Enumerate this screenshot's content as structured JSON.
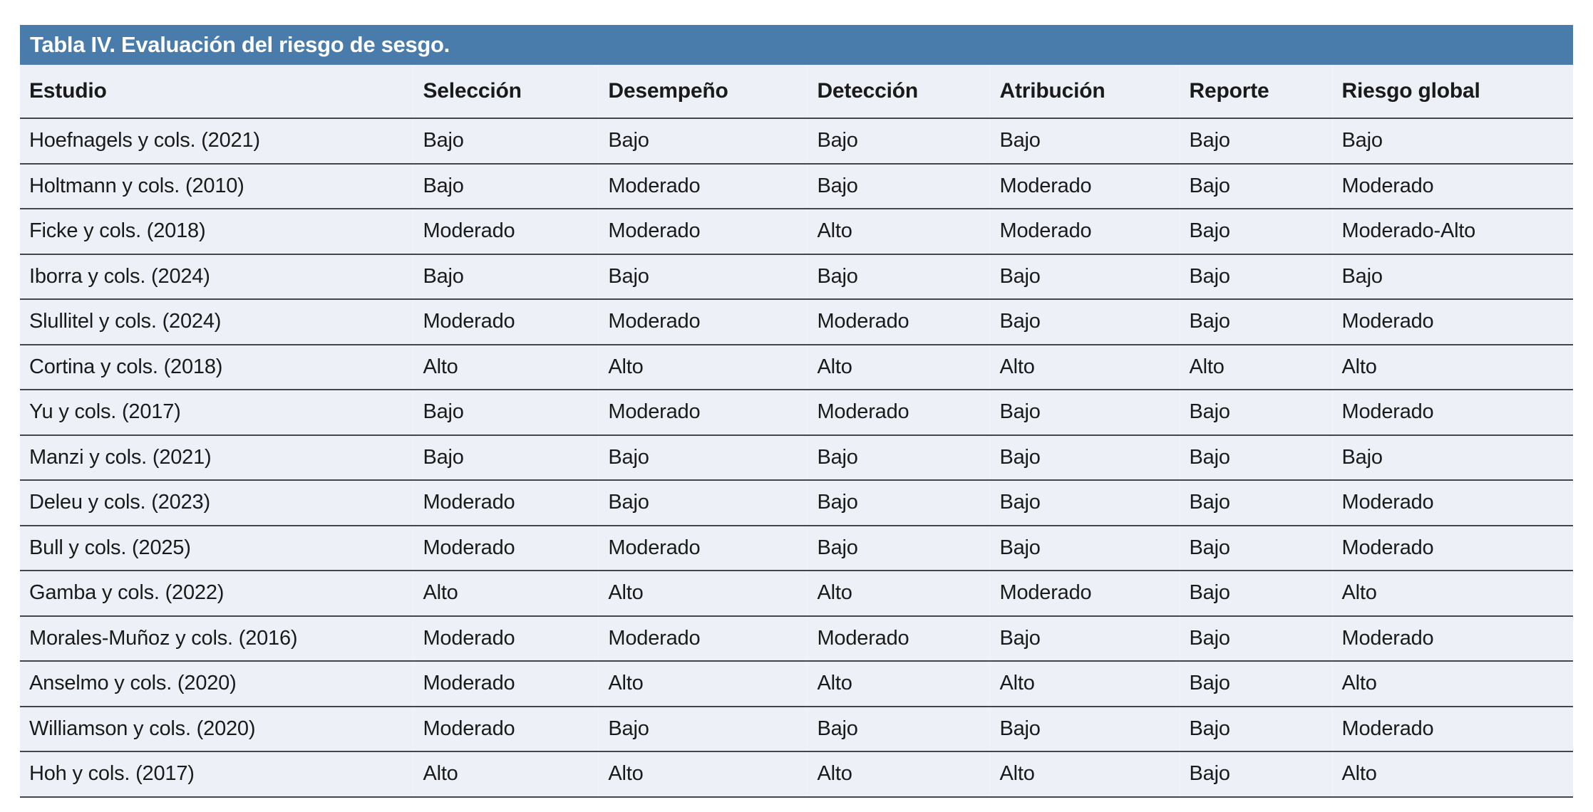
{
  "table": {
    "title": "Tabla IV. Evaluación del riesgo de sesgo.",
    "columns": [
      "Estudio",
      "Selección",
      "Desempeño",
      "Detección",
      "Atribución",
      "Reporte",
      "Riesgo global"
    ],
    "rows": [
      [
        "Hoefnagels y cols. (2021)",
        "Bajo",
        "Bajo",
        "Bajo",
        "Bajo",
        "Bajo",
        "Bajo"
      ],
      [
        "Holtmann y cols. (2010)",
        "Bajo",
        "Moderado",
        "Bajo",
        "Moderado",
        "Bajo",
        "Moderado"
      ],
      [
        "Ficke y cols. (2018)",
        "Moderado",
        "Moderado",
        "Alto",
        "Moderado",
        "Bajo",
        "Moderado-Alto"
      ],
      [
        "Iborra y cols. (2024)",
        "Bajo",
        "Bajo",
        "Bajo",
        "Bajo",
        "Bajo",
        "Bajo"
      ],
      [
        "Slullitel y cols. (2024)",
        "Moderado",
        "Moderado",
        "Moderado",
        "Bajo",
        "Bajo",
        "Moderado"
      ],
      [
        "Cortina y cols. (2018)",
        "Alto",
        "Alto",
        "Alto",
        "Alto",
        "Alto",
        "Alto"
      ],
      [
        "Yu y cols. (2017)",
        "Bajo",
        "Moderado",
        "Moderado",
        "Bajo",
        "Bajo",
        "Moderado"
      ],
      [
        "Manzi y cols. (2021)",
        "Bajo",
        "Bajo",
        "Bajo",
        "Bajo",
        "Bajo",
        "Bajo"
      ],
      [
        "Deleu y cols. (2023)",
        "Moderado",
        "Bajo",
        "Bajo",
        "Bajo",
        "Bajo",
        "Moderado"
      ],
      [
        "Bull y cols. (2025)",
        "Moderado",
        "Moderado",
        "Bajo",
        "Bajo",
        "Bajo",
        "Moderado"
      ],
      [
        "Gamba y cols. (2022)",
        "Alto",
        "Alto",
        "Alto",
        "Moderado",
        "Bajo",
        "Alto"
      ],
      [
        "Morales-Muñoz y cols. (2016)",
        "Moderado",
        "Moderado",
        "Moderado",
        "Bajo",
        "Bajo",
        "Moderado"
      ],
      [
        "Anselmo y cols. (2020)",
        "Moderado",
        "Alto",
        "Alto",
        "Alto",
        "Bajo",
        "Alto"
      ],
      [
        "Williamson y cols. (2020)",
        "Moderado",
        "Bajo",
        "Bajo",
        "Bajo",
        "Bajo",
        "Moderado"
      ],
      [
        "Hoh y cols. (2017)",
        "Alto",
        "Alto",
        "Alto",
        "Alto",
        "Bajo",
        "Alto"
      ]
    ],
    "colors": {
      "title_bar_background": "#4A7CAB",
      "title_text": "#FFFFFF",
      "row_background": "#EDF0F7",
      "row_divider": "#43474C",
      "body_text": "#1A1A1A"
    }
  },
  "chart_data": {
    "type": "table",
    "title": "Tabla IV. Evaluación del riesgo de sesgo.",
    "columns": [
      "Estudio",
      "Selección",
      "Desempeño",
      "Detección",
      "Atribución",
      "Reporte",
      "Riesgo global"
    ],
    "rows": [
      [
        "Hoefnagels y cols. (2021)",
        "Bajo",
        "Bajo",
        "Bajo",
        "Bajo",
        "Bajo",
        "Bajo"
      ],
      [
        "Holtmann y cols. (2010)",
        "Bajo",
        "Moderado",
        "Bajo",
        "Moderado",
        "Bajo",
        "Moderado"
      ],
      [
        "Ficke y cols. (2018)",
        "Moderado",
        "Moderado",
        "Alto",
        "Moderado",
        "Bajo",
        "Moderado-Alto"
      ],
      [
        "Iborra y cols. (2024)",
        "Bajo",
        "Bajo",
        "Bajo",
        "Bajo",
        "Bajo",
        "Bajo"
      ],
      [
        "Slullitel y cols. (2024)",
        "Moderado",
        "Moderado",
        "Moderado",
        "Bajo",
        "Bajo",
        "Moderado"
      ],
      [
        "Cortina y cols. (2018)",
        "Alto",
        "Alto",
        "Alto",
        "Alto",
        "Alto",
        "Alto"
      ],
      [
        "Yu y cols. (2017)",
        "Bajo",
        "Moderado",
        "Moderado",
        "Bajo",
        "Bajo",
        "Moderado"
      ],
      [
        "Manzi y cols. (2021)",
        "Bajo",
        "Bajo",
        "Bajo",
        "Bajo",
        "Bajo",
        "Bajo"
      ],
      [
        "Deleu y cols. (2023)",
        "Moderado",
        "Bajo",
        "Bajo",
        "Bajo",
        "Bajo",
        "Moderado"
      ],
      [
        "Bull y cols. (2025)",
        "Moderado",
        "Moderado",
        "Bajo",
        "Bajo",
        "Bajo",
        "Moderado"
      ],
      [
        "Gamba y cols. (2022)",
        "Alto",
        "Alto",
        "Alto",
        "Moderado",
        "Bajo",
        "Alto"
      ],
      [
        "Morales-Muñoz y cols. (2016)",
        "Moderado",
        "Moderado",
        "Moderado",
        "Bajo",
        "Bajo",
        "Moderado"
      ],
      [
        "Anselmo y cols. (2020)",
        "Moderado",
        "Alto",
        "Alto",
        "Alto",
        "Bajo",
        "Alto"
      ],
      [
        "Williamson y cols. (2020)",
        "Moderado",
        "Bajo",
        "Bajo",
        "Bajo",
        "Bajo",
        "Moderado"
      ],
      [
        "Hoh y cols. (2017)",
        "Alto",
        "Alto",
        "Alto",
        "Alto",
        "Bajo",
        "Alto"
      ]
    ]
  }
}
